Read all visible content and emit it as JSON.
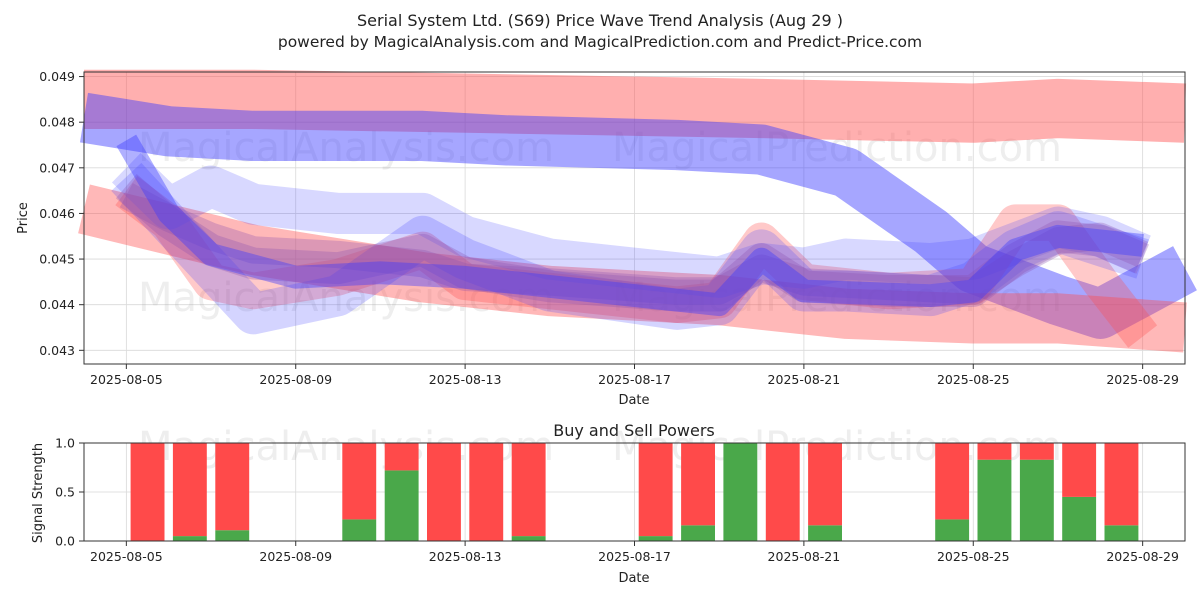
{
  "header": {
    "title": "Serial System Ltd. (S69) Price Wave Trend Analysis (Aug 29 )",
    "subtitle": "powered by MagicalAnalysis.com and MagicalPrediction.com and Predict-Price.com"
  },
  "watermarks": [
    "MagicalAnalysis.com",
    "MagicalPrediction.com"
  ],
  "colors": {
    "red": "#ff4d4d",
    "blue": "#3a3aff",
    "purple": "#8a4fb0",
    "sell": "#ff4a4a",
    "buy": "#4aa84a"
  },
  "chart_data": [
    {
      "type": "area",
      "title": "",
      "xlabel": "Date",
      "ylabel": "Price",
      "x_range": [
        "2025-08-04",
        "2025-08-30"
      ],
      "ylim": [
        0.0427,
        0.0491
      ],
      "x_ticks": [
        "2025-08-05",
        "2025-08-09",
        "2025-08-13",
        "2025-08-17",
        "2025-08-21",
        "2025-08-25",
        "2025-08-29"
      ],
      "y_ticks": [
        0.043,
        0.044,
        0.045,
        0.046,
        0.047,
        0.048,
        0.049
      ],
      "grid": true,
      "bands": [
        {
          "color": "red",
          "opacity": 0.45,
          "width": 0.0013,
          "points": [
            [
              "2025-08-04",
              0.0485
            ],
            [
              "2025-08-08",
              0.0485
            ],
            [
              "2025-08-14",
              0.0484
            ],
            [
              "2025-08-20",
              0.0483
            ],
            [
              "2025-08-25",
              0.0482
            ],
            [
              "2025-08-27",
              0.0483
            ],
            [
              "2025-08-30",
              0.0482
            ]
          ]
        },
        {
          "color": "blue",
          "opacity": 0.45,
          "width": 0.0011,
          "points": [
            [
              "2025-08-04",
              0.0481
            ],
            [
              "2025-08-06",
              0.0478
            ],
            [
              "2025-08-08",
              0.0477
            ],
            [
              "2025-08-12",
              0.0477
            ],
            [
              "2025-08-14",
              0.0476
            ],
            [
              "2025-08-18",
              0.0475
            ],
            [
              "2025-08-20",
              0.0474
            ],
            [
              "2025-08-22",
              0.0469
            ],
            [
              "2025-08-24",
              0.0456
            ],
            [
              "2025-08-25",
              0.0448
            ],
            [
              "2025-08-27",
              0.0441
            ],
            [
              "2025-08-28",
              0.0438
            ],
            [
              "2025-08-29",
              0.0443
            ],
            [
              "2025-08-30",
              0.0448
            ]
          ]
        },
        {
          "color": "red",
          "opacity": 0.4,
          "width": 0.0011,
          "points": [
            [
              "2025-08-04",
              0.0461
            ],
            [
              "2025-08-08",
              0.0452
            ],
            [
              "2025-08-12",
              0.0446
            ],
            [
              "2025-08-15",
              0.0443
            ],
            [
              "2025-08-19",
              0.0441
            ],
            [
              "2025-08-22",
              0.0438
            ],
            [
              "2025-08-25",
              0.0437
            ],
            [
              "2025-08-27",
              0.0437
            ],
            [
              "2025-08-30",
              0.0435
            ]
          ]
        },
        {
          "color": "red",
          "opacity": 0.3,
          "width": 0.0008,
          "points": [
            [
              "2025-08-05",
              0.0465
            ],
            [
              "2025-08-06",
              0.0458
            ],
            [
              "2025-08-07",
              0.0445
            ],
            [
              "2025-08-08",
              0.0443
            ],
            [
              "2025-08-10",
              0.0446
            ],
            [
              "2025-08-12",
              0.0452
            ],
            [
              "2025-08-13",
              0.0445
            ],
            [
              "2025-08-15",
              0.0443
            ],
            [
              "2025-08-18",
              0.044
            ],
            [
              "2025-08-19",
              0.0441
            ],
            [
              "2025-08-20",
              0.0454
            ],
            [
              "2025-08-21",
              0.0445
            ],
            [
              "2025-08-23",
              0.0443
            ],
            [
              "2025-08-25",
              0.0444
            ],
            [
              "2025-08-26",
              0.0458
            ],
            [
              "2025-08-27",
              0.0458
            ],
            [
              "2025-08-28",
              0.0445
            ],
            [
              "2025-08-29",
              0.0433
            ]
          ]
        },
        {
          "color": "blue",
          "opacity": 0.22,
          "width": 0.0009,
          "points": [
            [
              "2025-08-05",
              0.0468
            ],
            [
              "2025-08-06",
              0.0458
            ],
            [
              "2025-08-07",
              0.0448
            ],
            [
              "2025-08-08",
              0.0438
            ],
            [
              "2025-08-10",
              0.0442
            ],
            [
              "2025-08-12",
              0.0455
            ],
            [
              "2025-08-13",
              0.045
            ],
            [
              "2025-08-15",
              0.0443
            ],
            [
              "2025-08-18",
              0.0439
            ],
            [
              "2025-08-19",
              0.044
            ],
            [
              "2025-08-20",
              0.0452
            ],
            [
              "2025-08-21",
              0.0443
            ],
            [
              "2025-08-22",
              0.0443
            ],
            [
              "2025-08-24",
              0.0442
            ],
            [
              "2025-08-25",
              0.0445
            ],
            [
              "2025-08-26",
              0.0452
            ],
            [
              "2025-08-27",
              0.0456
            ],
            [
              "2025-08-28",
              0.0453
            ],
            [
              "2025-08-29",
              0.045
            ]
          ]
        },
        {
          "color": "blue",
          "opacity": 0.2,
          "width": 0.0009,
          "points": [
            [
              "2025-08-05",
              0.047
            ],
            [
              "2025-08-06",
              0.0461
            ],
            [
              "2025-08-07",
              0.0466
            ],
            [
              "2025-08-08",
              0.0462
            ],
            [
              "2025-08-10",
              0.046
            ],
            [
              "2025-08-12",
              0.046
            ],
            [
              "2025-08-13",
              0.0455
            ],
            [
              "2025-08-15",
              0.045
            ],
            [
              "2025-08-18",
              0.0447
            ],
            [
              "2025-08-19",
              0.0446
            ],
            [
              "2025-08-20",
              0.0449
            ],
            [
              "2025-08-21",
              0.0448
            ],
            [
              "2025-08-22",
              0.045
            ],
            [
              "2025-08-24",
              0.0449
            ],
            [
              "2025-08-25",
              0.045
            ],
            [
              "2025-08-27",
              0.0457
            ],
            [
              "2025-08-28",
              0.0455
            ],
            [
              "2025-08-29",
              0.0451
            ]
          ]
        },
        {
          "color": "purple",
          "opacity": 0.3,
          "width": 0.0007,
          "points": [
            [
              "2025-08-05",
              0.0466
            ],
            [
              "2025-08-06",
              0.0458
            ],
            [
              "2025-08-07",
              0.0452
            ],
            [
              "2025-08-08",
              0.0449
            ],
            [
              "2025-08-10",
              0.0448
            ],
            [
              "2025-08-12",
              0.0452
            ],
            [
              "2025-08-13",
              0.0447
            ],
            [
              "2025-08-15",
              0.0444
            ],
            [
              "2025-08-18",
              0.0442
            ],
            [
              "2025-08-19",
              0.0442
            ],
            [
              "2025-08-20",
              0.045
            ],
            [
              "2025-08-21",
              0.0444
            ],
            [
              "2025-08-23",
              0.0443
            ],
            [
              "2025-08-25",
              0.0443
            ],
            [
              "2025-08-26",
              0.045
            ],
            [
              "2025-08-27",
              0.0455
            ],
            [
              "2025-08-28",
              0.0454
            ],
            [
              "2025-08-29",
              0.045
            ]
          ]
        },
        {
          "color": "purple",
          "opacity": 0.3,
          "width": 0.0006,
          "points": [
            [
              "2025-08-05",
              0.0464
            ],
            [
              "2025-08-06",
              0.0459
            ],
            [
              "2025-08-07",
              0.0455
            ],
            [
              "2025-08-08",
              0.0452
            ],
            [
              "2025-08-10",
              0.0451
            ],
            [
              "2025-08-12",
              0.0449
            ],
            [
              "2025-08-13",
              0.0446
            ],
            [
              "2025-08-15",
              0.0445
            ],
            [
              "2025-08-18",
              0.0443
            ],
            [
              "2025-08-19",
              0.0443
            ],
            [
              "2025-08-20",
              0.0448
            ],
            [
              "2025-08-21",
              0.0445
            ],
            [
              "2025-08-23",
              0.0444
            ],
            [
              "2025-08-25",
              0.0443
            ],
            [
              "2025-08-26",
              0.0449
            ],
            [
              "2025-08-27",
              0.0454
            ],
            [
              "2025-08-28",
              0.0455
            ],
            [
              "2025-08-29",
              0.0451
            ]
          ]
        },
        {
          "color": "blue",
          "opacity": 0.4,
          "width": 0.0005,
          "points": [
            [
              "2025-08-05",
              0.0476
            ],
            [
              "2025-08-06",
              0.046
            ],
            [
              "2025-08-07",
              0.0451
            ],
            [
              "2025-08-09",
              0.0446
            ],
            [
              "2025-08-11",
              0.0447
            ],
            [
              "2025-08-13",
              0.0446
            ],
            [
              "2025-08-16",
              0.0443
            ],
            [
              "2025-08-19",
              0.044
            ],
            [
              "2025-08-20",
              0.045
            ],
            [
              "2025-08-21",
              0.0443
            ],
            [
              "2025-08-24",
              0.0442
            ],
            [
              "2025-08-25",
              0.0443
            ],
            [
              "2025-08-26",
              0.0452
            ],
            [
              "2025-08-27",
              0.0455
            ],
            [
              "2025-08-28",
              0.0454
            ],
            [
              "2025-08-29",
              0.0453
            ]
          ]
        }
      ]
    },
    {
      "type": "bar",
      "title": "Buy and Sell Powers",
      "xlabel": "Date",
      "ylabel": "Signal Strength",
      "x_range": [
        "2025-08-04",
        "2025-08-30"
      ],
      "ylim": [
        0,
        1.0
      ],
      "x_ticks": [
        "2025-08-05",
        "2025-08-09",
        "2025-08-13",
        "2025-08-17",
        "2025-08-21",
        "2025-08-25",
        "2025-08-29"
      ],
      "y_ticks": [
        0.0,
        0.5,
        1.0
      ],
      "grid": true,
      "categories": [
        "2025-08-05",
        "2025-08-06",
        "2025-08-07",
        "2025-08-10",
        "2025-08-11",
        "2025-08-12",
        "2025-08-13",
        "2025-08-14",
        "2025-08-17",
        "2025-08-18",
        "2025-08-19",
        "2025-08-20",
        "2025-08-21",
        "2025-08-24",
        "2025-08-25",
        "2025-08-26",
        "2025-08-27",
        "2025-08-28"
      ],
      "series": [
        {
          "name": "Buy",
          "values": [
            0.0,
            0.05,
            0.11,
            0.22,
            0.72,
            0.0,
            0.0,
            0.05,
            0.05,
            0.16,
            1.0,
            0.0,
            0.16,
            0.22,
            0.83,
            0.83,
            0.45,
            0.16
          ]
        },
        {
          "name": "Sell",
          "values": [
            1.0,
            0.95,
            0.89,
            0.78,
            0.28,
            1.0,
            1.0,
            0.95,
            0.95,
            0.84,
            0.0,
            1.0,
            0.84,
            0.78,
            0.17,
            0.17,
            0.55,
            0.84
          ]
        }
      ]
    }
  ]
}
